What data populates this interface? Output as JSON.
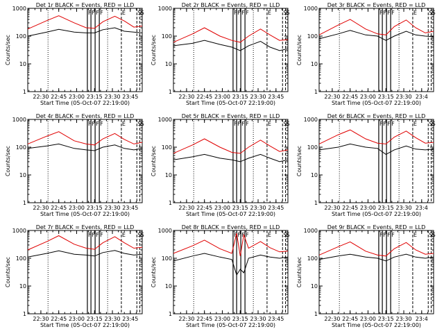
{
  "start_time_label": "Start Time (05-Oct-07 22:19:00)",
  "colors": {
    "events": "#000000",
    "lld": "#e00000"
  },
  "x_ticks": [
    "22:30",
    "22:45",
    "23:00",
    "23:15",
    "23:30",
    "23:45"
  ],
  "x_ticks_short": [
    "22:30",
    "22:45",
    "23:00",
    "23:15",
    "23:30",
    "23:4"
  ],
  "y_ticks": [
    "1",
    "10",
    "100",
    "1000"
  ],
  "markers": {
    "F": {
      "label": "F",
      "style": "solid",
      "positions": [
        "23:09",
        "23:12",
        "23:15.5",
        "23:19"
      ]
    },
    "E": {
      "label": "E",
      "style": "dashed",
      "positions": [
        "23:37.5"
      ]
    },
    "S": {
      "label": "S",
      "style": "dashed",
      "positions": [
        "23:50.5",
        "23:53"
      ]
    },
    "dotted": {
      "style": "dotted",
      "positions": [
        "22:36",
        "23:26"
      ]
    }
  },
  "chart_data": [
    {
      "type": "line",
      "title": "Det 1r BLACK = Events, RED = LLD",
      "xlabel": "Start Time (05-Oct-07 22:19:00)",
      "ylabel": "Counts/sec",
      "y_scale": "log",
      "ylim": [
        1,
        1000
      ],
      "xlim": [
        "22:19",
        "23:55"
      ],
      "series": [
        {
          "name": "Events",
          "color": "#000000",
          "x": [
            "22:19",
            "22:35",
            "22:45",
            "22:58",
            "23:08",
            "23:15",
            "23:22",
            "23:32",
            "23:40",
            "23:48",
            "23:55"
          ],
          "y": [
            100,
            140,
            175,
            140,
            130,
            130,
            170,
            200,
            150,
            140,
            130
          ]
        },
        {
          "name": "LLD",
          "color": "#e00000",
          "x": [
            "22:19",
            "22:35",
            "22:45",
            "22:58",
            "23:08",
            "23:15",
            "23:22",
            "23:32",
            "23:40",
            "23:48",
            "23:55"
          ],
          "y": [
            180,
            360,
            540,
            300,
            200,
            190,
            330,
            520,
            350,
            210,
            230
          ]
        }
      ]
    },
    {
      "type": "line",
      "title": "Det 2r BLACK = Events, RED = LLD",
      "xlabel": "Start Time (05-Oct-07 22:19:00)",
      "ylabel": "Counts/sec",
      "y_scale": "log",
      "ylim": [
        1,
        1000
      ],
      "xlim": [
        "22:19",
        "23:55"
      ],
      "series": [
        {
          "name": "Events",
          "color": "#000000",
          "x": [
            "22:19",
            "22:35",
            "22:45",
            "22:58",
            "23:08",
            "23:15",
            "23:22",
            "23:32",
            "23:40",
            "23:48",
            "23:55"
          ],
          "y": [
            45,
            55,
            70,
            50,
            40,
            30,
            45,
            65,
            40,
            30,
            35
          ]
        },
        {
          "name": "LLD",
          "color": "#e00000",
          "x": [
            "22:19",
            "22:35",
            "22:45",
            "22:58",
            "23:08",
            "23:15",
            "23:22",
            "23:32",
            "23:40",
            "23:48",
            "23:55"
          ],
          "y": [
            60,
            120,
            200,
            100,
            70,
            60,
            100,
            180,
            110,
            70,
            75
          ]
        }
      ]
    },
    {
      "type": "line",
      "title": "Det 3r BLACK = Events, RED = LLD",
      "xlabel": "Start Time (05-Oct-07 22:19:00)",
      "ylabel": "Counts/sec",
      "y_scale": "log",
      "ylim": [
        1,
        1000
      ],
      "xlim": [
        "22:19",
        "23:55"
      ],
      "series": [
        {
          "name": "Events",
          "color": "#000000",
          "x": [
            "22:19",
            "22:35",
            "22:45",
            "22:58",
            "23:08",
            "23:15",
            "23:22",
            "23:32",
            "23:40",
            "23:48",
            "23:55"
          ],
          "y": [
            80,
            120,
            160,
            110,
            100,
            70,
            100,
            150,
            110,
            100,
            95
          ]
        },
        {
          "name": "LLD",
          "color": "#e00000",
          "x": [
            "22:19",
            "22:35",
            "22:45",
            "22:58",
            "23:08",
            "23:15",
            "23:22",
            "23:32",
            "23:40",
            "23:48",
            "23:55"
          ],
          "y": [
            110,
            250,
            400,
            180,
            120,
            110,
            220,
            380,
            200,
            130,
            150
          ]
        }
      ]
    },
    {
      "type": "line",
      "title": "Det 4r BLACK = Events, RED = LLD",
      "xlabel": "Start Time (05-Oct-07 22:19:00)",
      "ylabel": "Counts/sec",
      "y_scale": "log",
      "ylim": [
        1,
        1000
      ],
      "xlim": [
        "22:19",
        "23:55"
      ],
      "series": [
        {
          "name": "Events",
          "color": "#000000",
          "x": [
            "22:19",
            "22:35",
            "22:45",
            "22:58",
            "23:08",
            "23:15",
            "23:22",
            "23:32",
            "23:40",
            "23:48",
            "23:55"
          ],
          "y": [
            90,
            110,
            130,
            90,
            80,
            75,
            100,
            120,
            90,
            80,
            90
          ]
        },
        {
          "name": "LLD",
          "color": "#e00000",
          "x": [
            "22:19",
            "22:35",
            "22:45",
            "22:58",
            "23:08",
            "23:15",
            "23:22",
            "23:32",
            "23:40",
            "23:48",
            "23:55"
          ],
          "y": [
            130,
            250,
            360,
            170,
            130,
            120,
            200,
            310,
            190,
            130,
            150
          ]
        }
      ]
    },
    {
      "type": "line",
      "title": "Det 5r BLACK = Events, RED = LLD",
      "xlabel": "Start Time (05-Oct-07 22:19:00)",
      "ylabel": "Counts/sec",
      "y_scale": "log",
      "ylim": [
        1,
        1000
      ],
      "xlim": [
        "22:19",
        "23:55"
      ],
      "series": [
        {
          "name": "Events",
          "color": "#000000",
          "x": [
            "22:19",
            "22:35",
            "22:45",
            "22:58",
            "23:08",
            "23:15",
            "23:22",
            "23:32",
            "23:40",
            "23:48",
            "23:55"
          ],
          "y": [
            35,
            45,
            55,
            40,
            35,
            30,
            40,
            55,
            40,
            30,
            35
          ]
        },
        {
          "name": "LLD",
          "color": "#e00000",
          "x": [
            "22:19",
            "22:35",
            "22:45",
            "22:58",
            "23:08",
            "23:15",
            "23:22",
            "23:32",
            "23:40",
            "23:48",
            "23:55"
          ],
          "y": [
            60,
            120,
            200,
            100,
            65,
            60,
            100,
            180,
            110,
            70,
            80
          ]
        }
      ]
    },
    {
      "type": "line",
      "title": "Det 6r BLACK = Events, RED = LLD",
      "xlabel": "Start Time (05-Oct-07 22:19:00)",
      "ylabel": "Counts/sec",
      "y_scale": "log",
      "ylim": [
        1,
        1000
      ],
      "xlim": [
        "22:19",
        "23:55"
      ],
      "series": [
        {
          "name": "Events",
          "color": "#000000",
          "x": [
            "22:19",
            "22:35",
            "22:45",
            "22:58",
            "23:08",
            "23:15",
            "23:22",
            "23:32",
            "23:40",
            "23:48",
            "23:55"
          ],
          "y": [
            80,
            100,
            130,
            100,
            90,
            55,
            80,
            110,
            85,
            80,
            85
          ]
        },
        {
          "name": "LLD",
          "color": "#e00000",
          "x": [
            "22:19",
            "22:35",
            "22:45",
            "22:58",
            "23:08",
            "23:15",
            "23:22",
            "23:32",
            "23:40",
            "23:48",
            "23:55"
          ],
          "y": [
            130,
            280,
            420,
            200,
            140,
            130,
            230,
            380,
            220,
            140,
            150
          ]
        }
      ]
    },
    {
      "type": "line",
      "title": "Det 7r BLACK = Events, RED = LLD",
      "xlabel": "Start Time (05-Oct-07 22:19:00)",
      "ylabel": "Counts/sec",
      "y_scale": "log",
      "ylim": [
        1,
        1000
      ],
      "xlim": [
        "22:19",
        "23:55"
      ],
      "series": [
        {
          "name": "Events",
          "color": "#000000",
          "x": [
            "22:19",
            "22:35",
            "22:45",
            "22:58",
            "23:08",
            "23:15",
            "23:22",
            "23:32",
            "23:40",
            "23:48",
            "23:55"
          ],
          "y": [
            110,
            150,
            185,
            140,
            130,
            120,
            160,
            190,
            150,
            130,
            140
          ]
        },
        {
          "name": "LLD",
          "color": "#e00000",
          "x": [
            "22:19",
            "22:35",
            "22:45",
            "22:58",
            "23:08",
            "23:15",
            "23:22",
            "23:32",
            "23:40",
            "23:48",
            "23:55"
          ],
          "y": [
            200,
            400,
            650,
            320,
            230,
            210,
            360,
            600,
            360,
            230,
            250
          ]
        }
      ]
    },
    {
      "type": "line",
      "title": "Det 8r BLACK = Events, RED = LLD",
      "xlabel": "Start Time (05-Oct-07 22:19:00)",
      "ylabel": "Counts/sec",
      "y_scale": "log",
      "ylim": [
        1,
        1000
      ],
      "xlim": [
        "22:19",
        "23:55"
      ],
      "series": [
        {
          "name": "Events",
          "color": "#000000",
          "x": [
            "22:19",
            "22:35",
            "22:45",
            "22:58",
            "23:08",
            "23:12",
            "23:15",
            "23:18",
            "23:22",
            "23:32",
            "23:40",
            "23:48",
            "23:55"
          ],
          "y": [
            80,
            120,
            150,
            110,
            90,
            25,
            40,
            30,
            100,
            130,
            110,
            100,
            110
          ]
        },
        {
          "name": "LLD",
          "color": "#e00000",
          "x": [
            "22:19",
            "22:35",
            "22:45",
            "22:58",
            "23:08",
            "23:12",
            "23:15",
            "23:18",
            "23:22",
            "23:32",
            "23:40",
            "23:48",
            "23:55"
          ],
          "y": [
            150,
            280,
            450,
            220,
            150,
            800,
            120,
            700,
            230,
            400,
            240,
            170,
            180
          ]
        }
      ]
    },
    {
      "type": "line",
      "title": "Det 9r BLACK = Events, RED = LLD",
      "xlabel": "Start Time (05-Oct-07 22:19:00)",
      "ylabel": "Counts/sec",
      "y_scale": "log",
      "ylim": [
        1,
        1000
      ],
      "xlim": [
        "22:19",
        "23:55"
      ],
      "series": [
        {
          "name": "Events",
          "color": "#000000",
          "x": [
            "22:19",
            "22:35",
            "22:45",
            "22:58",
            "23:08",
            "23:15",
            "23:22",
            "23:32",
            "23:40",
            "23:48",
            "23:55"
          ],
          "y": [
            90,
            120,
            140,
            110,
            100,
            80,
            110,
            140,
            110,
            100,
            110
          ]
        },
        {
          "name": "LLD",
          "color": "#e00000",
          "x": [
            "22:19",
            "22:35",
            "22:45",
            "22:58",
            "23:08",
            "23:15",
            "23:22",
            "23:32",
            "23:40",
            "23:48",
            "23:55"
          ],
          "y": [
            130,
            260,
            390,
            180,
            130,
            120,
            220,
            370,
            200,
            140,
            150
          ]
        }
      ]
    }
  ]
}
